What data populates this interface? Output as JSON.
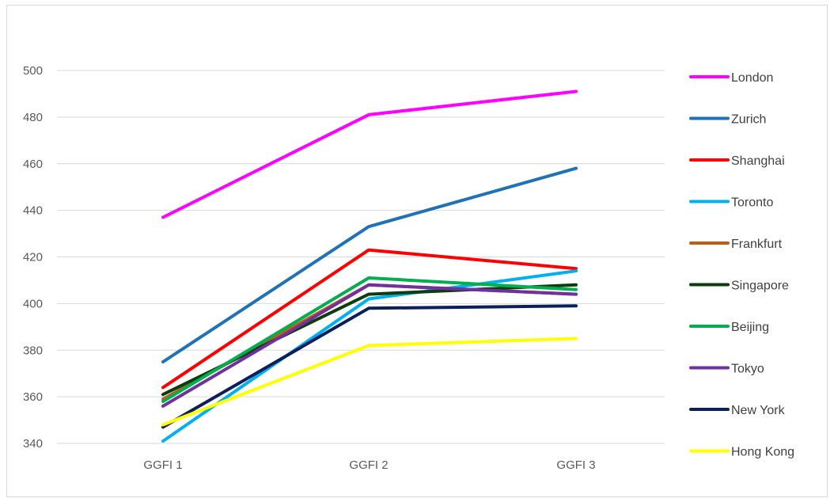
{
  "chart_data": {
    "type": "line",
    "title": "",
    "xlabel": "",
    "ylabel": "",
    "categories": [
      "GGFI 1",
      "GGFI 2",
      "GGFI 3"
    ],
    "ylim": [
      340,
      500
    ],
    "yticks": [
      340,
      360,
      380,
      400,
      420,
      440,
      460,
      480,
      500
    ],
    "grid": true,
    "legend_position": "right",
    "series": [
      {
        "name": "London",
        "color": "#ff00ff",
        "values": [
          437,
          481,
          491
        ]
      },
      {
        "name": "Zurich",
        "color": "#1f72b8",
        "values": [
          375,
          433,
          458
        ]
      },
      {
        "name": "Shanghai",
        "color": "#ff0000",
        "values": [
          364,
          423,
          415
        ]
      },
      {
        "name": "Toronto",
        "color": "#00b0f0",
        "values": [
          341,
          402,
          414
        ]
      },
      {
        "name": "Frankfurt",
        "color": "#c55a11",
        "values": [
          359,
          408,
          404
        ]
      },
      {
        "name": "Singapore",
        "color": "#0d3d0d",
        "values": [
          361,
          404,
          408
        ]
      },
      {
        "name": "Beijing",
        "color": "#00b050",
        "values": [
          358,
          411,
          406
        ]
      },
      {
        "name": "Tokyo",
        "color": "#7030a0",
        "values": [
          356,
          408,
          404
        ]
      },
      {
        "name": "New York",
        "color": "#0a1f5c",
        "values": [
          347,
          398,
          399
        ]
      },
      {
        "name": "Hong Kong",
        "color": "#ffff00",
        "values": [
          348,
          382,
          385
        ]
      }
    ]
  }
}
